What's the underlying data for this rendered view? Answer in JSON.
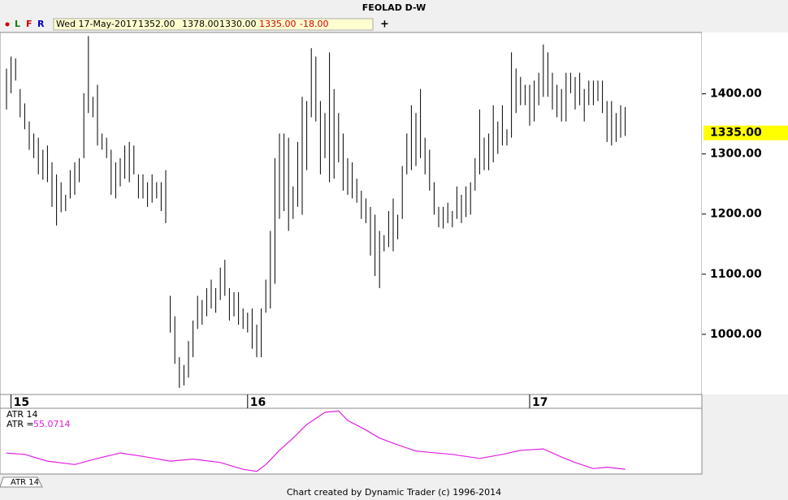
{
  "chart_data": {
    "type": "ohlc",
    "title": "FEOLAD D-W",
    "header": {
      "buttons": [
        "L",
        "F",
        "R"
      ],
      "date": "Wed 17-May-2017",
      "open": "1352.00",
      "high": "1378.00",
      "low": "1330.00",
      "close": "1335.00",
      "change": "-18.00"
    },
    "high": [
      1442,
      1462,
      1459,
      1408,
      1384,
      1354,
      1334,
      1327,
      1307,
      1314,
      1286,
      1266,
      1253,
      1232,
      1273,
      1286,
      1293,
      1401,
      1496,
      1395,
      1415,
      1334,
      1327,
      1307,
      1286,
      1293,
      1314,
      1320,
      1314,
      1266,
      1266,
      1253,
      1266,
      1253,
      1253,
      1273,
      1064,
      1030,
      962,
      949,
      989,
      1023,
      1064,
      1057,
      1077,
      1091,
      1077,
      1111,
      1124,
      1077,
      1070,
      1070,
      1043,
      1036,
      1043,
      1016,
      1043,
      1091,
      1172,
      1293,
      1334,
      1334,
      1327,
      1246,
      1320,
      1395,
      1388,
      1476,
      1462,
      1388,
      1368,
      1469,
      1408,
      1368,
      1334,
      1293,
      1286,
      1259,
      1239,
      1226,
      1212,
      1199,
      1172,
      1165,
      1205,
      1226,
      1199,
      1280,
      1334,
      1381,
      1368,
      1408,
      1327,
      1307,
      1253,
      1212,
      1212,
      1219,
      1205,
      1246,
      1232,
      1246,
      1253,
      1293,
      1374,
      1327,
      1334,
      1381,
      1354,
      1381,
      1341,
      1469,
      1442,
      1428,
      1415,
      1415,
      1422,
      1435,
      1482,
      1469,
      1435,
      1415,
      1408,
      1435,
      1435,
      1428,
      1435,
      1408,
      1422,
      1422,
      1422,
      1422,
      1388,
      1388,
      1368,
      1381,
      1378
    ],
    "low": [
      1374,
      1401,
      1422,
      1361,
      1341,
      1307,
      1293,
      1266,
      1257,
      1253,
      1212,
      1181,
      1203,
      1205,
      1226,
      1232,
      1253,
      1293,
      1368,
      1361,
      1314,
      1307,
      1293,
      1232,
      1226,
      1246,
      1259,
      1253,
      1266,
      1226,
      1226,
      1212,
      1219,
      1226,
      1205,
      1185,
      1003,
      951,
      911,
      915,
      928,
      962,
      1009,
      1016,
      1030,
      1043,
      1036,
      1057,
      1064,
      1023,
      1030,
      1016,
      1009,
      1003,
      976,
      962,
      962,
      1036,
      1043,
      1084,
      1192,
      1205,
      1172,
      1192,
      1212,
      1199,
      1273,
      1361,
      1354,
      1266,
      1293,
      1253,
      1259,
      1286,
      1239,
      1232,
      1226,
      1219,
      1192,
      1185,
      1131,
      1097,
      1077,
      1138,
      1145,
      1138,
      1158,
      1192,
      1266,
      1273,
      1280,
      1293,
      1266,
      1239,
      1199,
      1178,
      1176,
      1185,
      1178,
      1192,
      1185,
      1195,
      1199,
      1239,
      1266,
      1273,
      1273,
      1286,
      1300,
      1314,
      1314,
      1327,
      1368,
      1381,
      1381,
      1347,
      1354,
      1381,
      1395,
      1395,
      1374,
      1361,
      1354,
      1354,
      1401,
      1374,
      1381,
      1354,
      1381,
      1381,
      1388,
      1368,
      1320,
      1314,
      1320,
      1327,
      1330
    ],
    "color": "#000000",
    "ylim": [
      900,
      1502
    ],
    "yticks": [
      {
        "value": 1000,
        "label": "1000.00"
      },
      {
        "value": 1100,
        "label": "1100.00"
      },
      {
        "value": 1200,
        "label": "1200.00"
      },
      {
        "value": 1300,
        "label": "1300.00"
      },
      {
        "value": 1400,
        "label": "1400.00"
      }
    ],
    "last": {
      "value": 1335,
      "label": "1335.00"
    },
    "xlim": [
      -0.5,
      152.5
    ],
    "xticks": [
      {
        "value": 1,
        "label": "15"
      },
      {
        "value": 53,
        "label": "16"
      },
      {
        "value": 115,
        "label": "17"
      }
    ],
    "indicator": {
      "name": "ATR 14",
      "label": "ATR =",
      "value_label": "55.0714",
      "color": "#e020e0",
      "tab": "ATR 14",
      "x": [
        0,
        4,
        9,
        15,
        20,
        25,
        30,
        36,
        41,
        47,
        52,
        55,
        57,
        60,
        63,
        66,
        70,
        73,
        75,
        79,
        82,
        86,
        90,
        93,
        98,
        104,
        109,
        113,
        118,
        122,
        125,
        129,
        132,
        136
      ],
      "values": [
        79,
        77,
        67,
        62,
        71,
        79,
        74,
        67,
        70,
        65,
        55,
        52,
        62,
        83,
        101,
        121,
        139,
        141,
        127,
        113,
        101,
        91,
        82,
        80,
        77,
        71,
        77,
        83,
        85,
        73,
        65,
        56,
        58,
        55.07
      ],
      "ylim": [
        48,
        145
      ]
    },
    "footer": "Chart created by Dynamic Trader  (c)  1996-2014"
  }
}
